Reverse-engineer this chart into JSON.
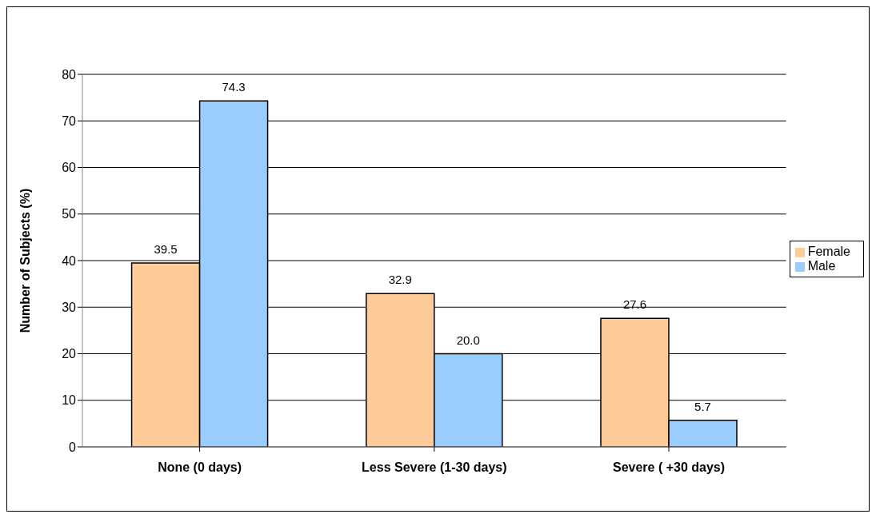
{
  "chart_data": {
    "type": "bar",
    "ylabel": "Number of Subjects (%)",
    "categories": [
      "None (0 days)",
      "Less Severe (1-30 days)",
      "Severe ( +30 days)"
    ],
    "series": [
      {
        "name": "Female",
        "color": "#ffcc99",
        "values": [
          39.5,
          32.9,
          27.6
        ],
        "value_labels": [
          "39.5",
          "32.9",
          "27.6"
        ]
      },
      {
        "name": "Male",
        "color": "#99ccff",
        "values": [
          74.3,
          20.0,
          5.7
        ],
        "value_labels": [
          "74.3",
          "20.0",
          "5.7"
        ]
      }
    ],
    "ylim": [
      0,
      80
    ],
    "yticks": [
      0,
      10,
      20,
      30,
      40,
      50,
      60,
      70,
      80
    ],
    "grid": "y",
    "legend": "right"
  }
}
